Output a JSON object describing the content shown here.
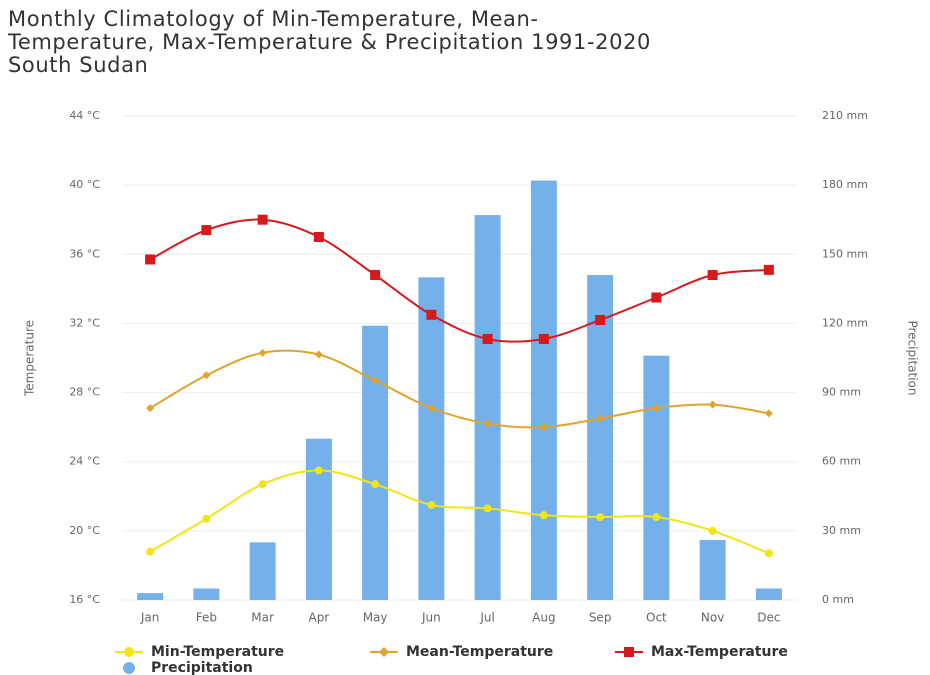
{
  "chart_data": {
    "type": "bar-line",
    "title": [
      "Monthly Climatology of Min-Temperature, Mean-",
      "Temperature, Max-Temperature & Precipitation 1991-2020",
      "South Sudan"
    ],
    "y_label": "Temperature",
    "y2_label": "Precipitation",
    "categories": [
      "Jan",
      "Feb",
      "Mar",
      "Apr",
      "May",
      "Jun",
      "Jul",
      "Aug",
      "Sep",
      "Oct",
      "Nov",
      "Dec"
    ],
    "ylim": [
      16,
      44
    ],
    "yticks": [
      {
        "value": 16,
        "label": "16 °C"
      },
      {
        "value": 20,
        "label": "20 °C"
      },
      {
        "value": 24,
        "label": "24 °C"
      },
      {
        "value": 28,
        "label": "28 °C"
      },
      {
        "value": 32,
        "label": "32 °C"
      },
      {
        "value": 36,
        "label": "36 °C"
      },
      {
        "value": 40,
        "label": "40 °C"
      },
      {
        "value": 44,
        "label": "44 °C"
      }
    ],
    "y2lim": [
      0,
      210
    ],
    "y2ticks": [
      {
        "value": 0,
        "label": "0 mm"
      },
      {
        "value": 30,
        "label": "30 mm"
      },
      {
        "value": 60,
        "label": "60 mm"
      },
      {
        "value": 90,
        "label": "90 mm"
      },
      {
        "value": 120,
        "label": "120 mm"
      },
      {
        "value": 150,
        "label": "150 mm"
      },
      {
        "value": 180,
        "label": "180 mm"
      },
      {
        "value": 210,
        "label": "210 mm"
      }
    ],
    "grid": true,
    "series": [
      {
        "name": "Min-Temperature",
        "type": "line",
        "marker": "circle",
        "color": "#f2e514",
        "values": [
          18.8,
          20.7,
          22.7,
          23.5,
          22.7,
          21.5,
          21.3,
          20.9,
          20.8,
          20.8,
          20.0,
          18.7
        ]
      },
      {
        "name": "Mean-Temperature",
        "type": "line",
        "marker": "diamond",
        "color": "#e0a32e",
        "values": [
          27.1,
          29.0,
          30.3,
          30.2,
          28.7,
          27.1,
          26.2,
          26.0,
          26.5,
          27.1,
          27.3,
          26.8
        ]
      },
      {
        "name": "Max-Temperature",
        "type": "line",
        "marker": "square",
        "color": "#d7191c",
        "values": [
          35.7,
          37.4,
          38.0,
          37.0,
          34.8,
          32.5,
          31.1,
          31.1,
          32.2,
          33.5,
          34.8,
          35.1
        ]
      },
      {
        "name": "Precipitation",
        "type": "bar",
        "axis": "y2",
        "marker": "circle",
        "color": "#74b1ea",
        "values": [
          3,
          5,
          25,
          70,
          119,
          140,
          167,
          182,
          141,
          106,
          26,
          5
        ]
      }
    ]
  }
}
